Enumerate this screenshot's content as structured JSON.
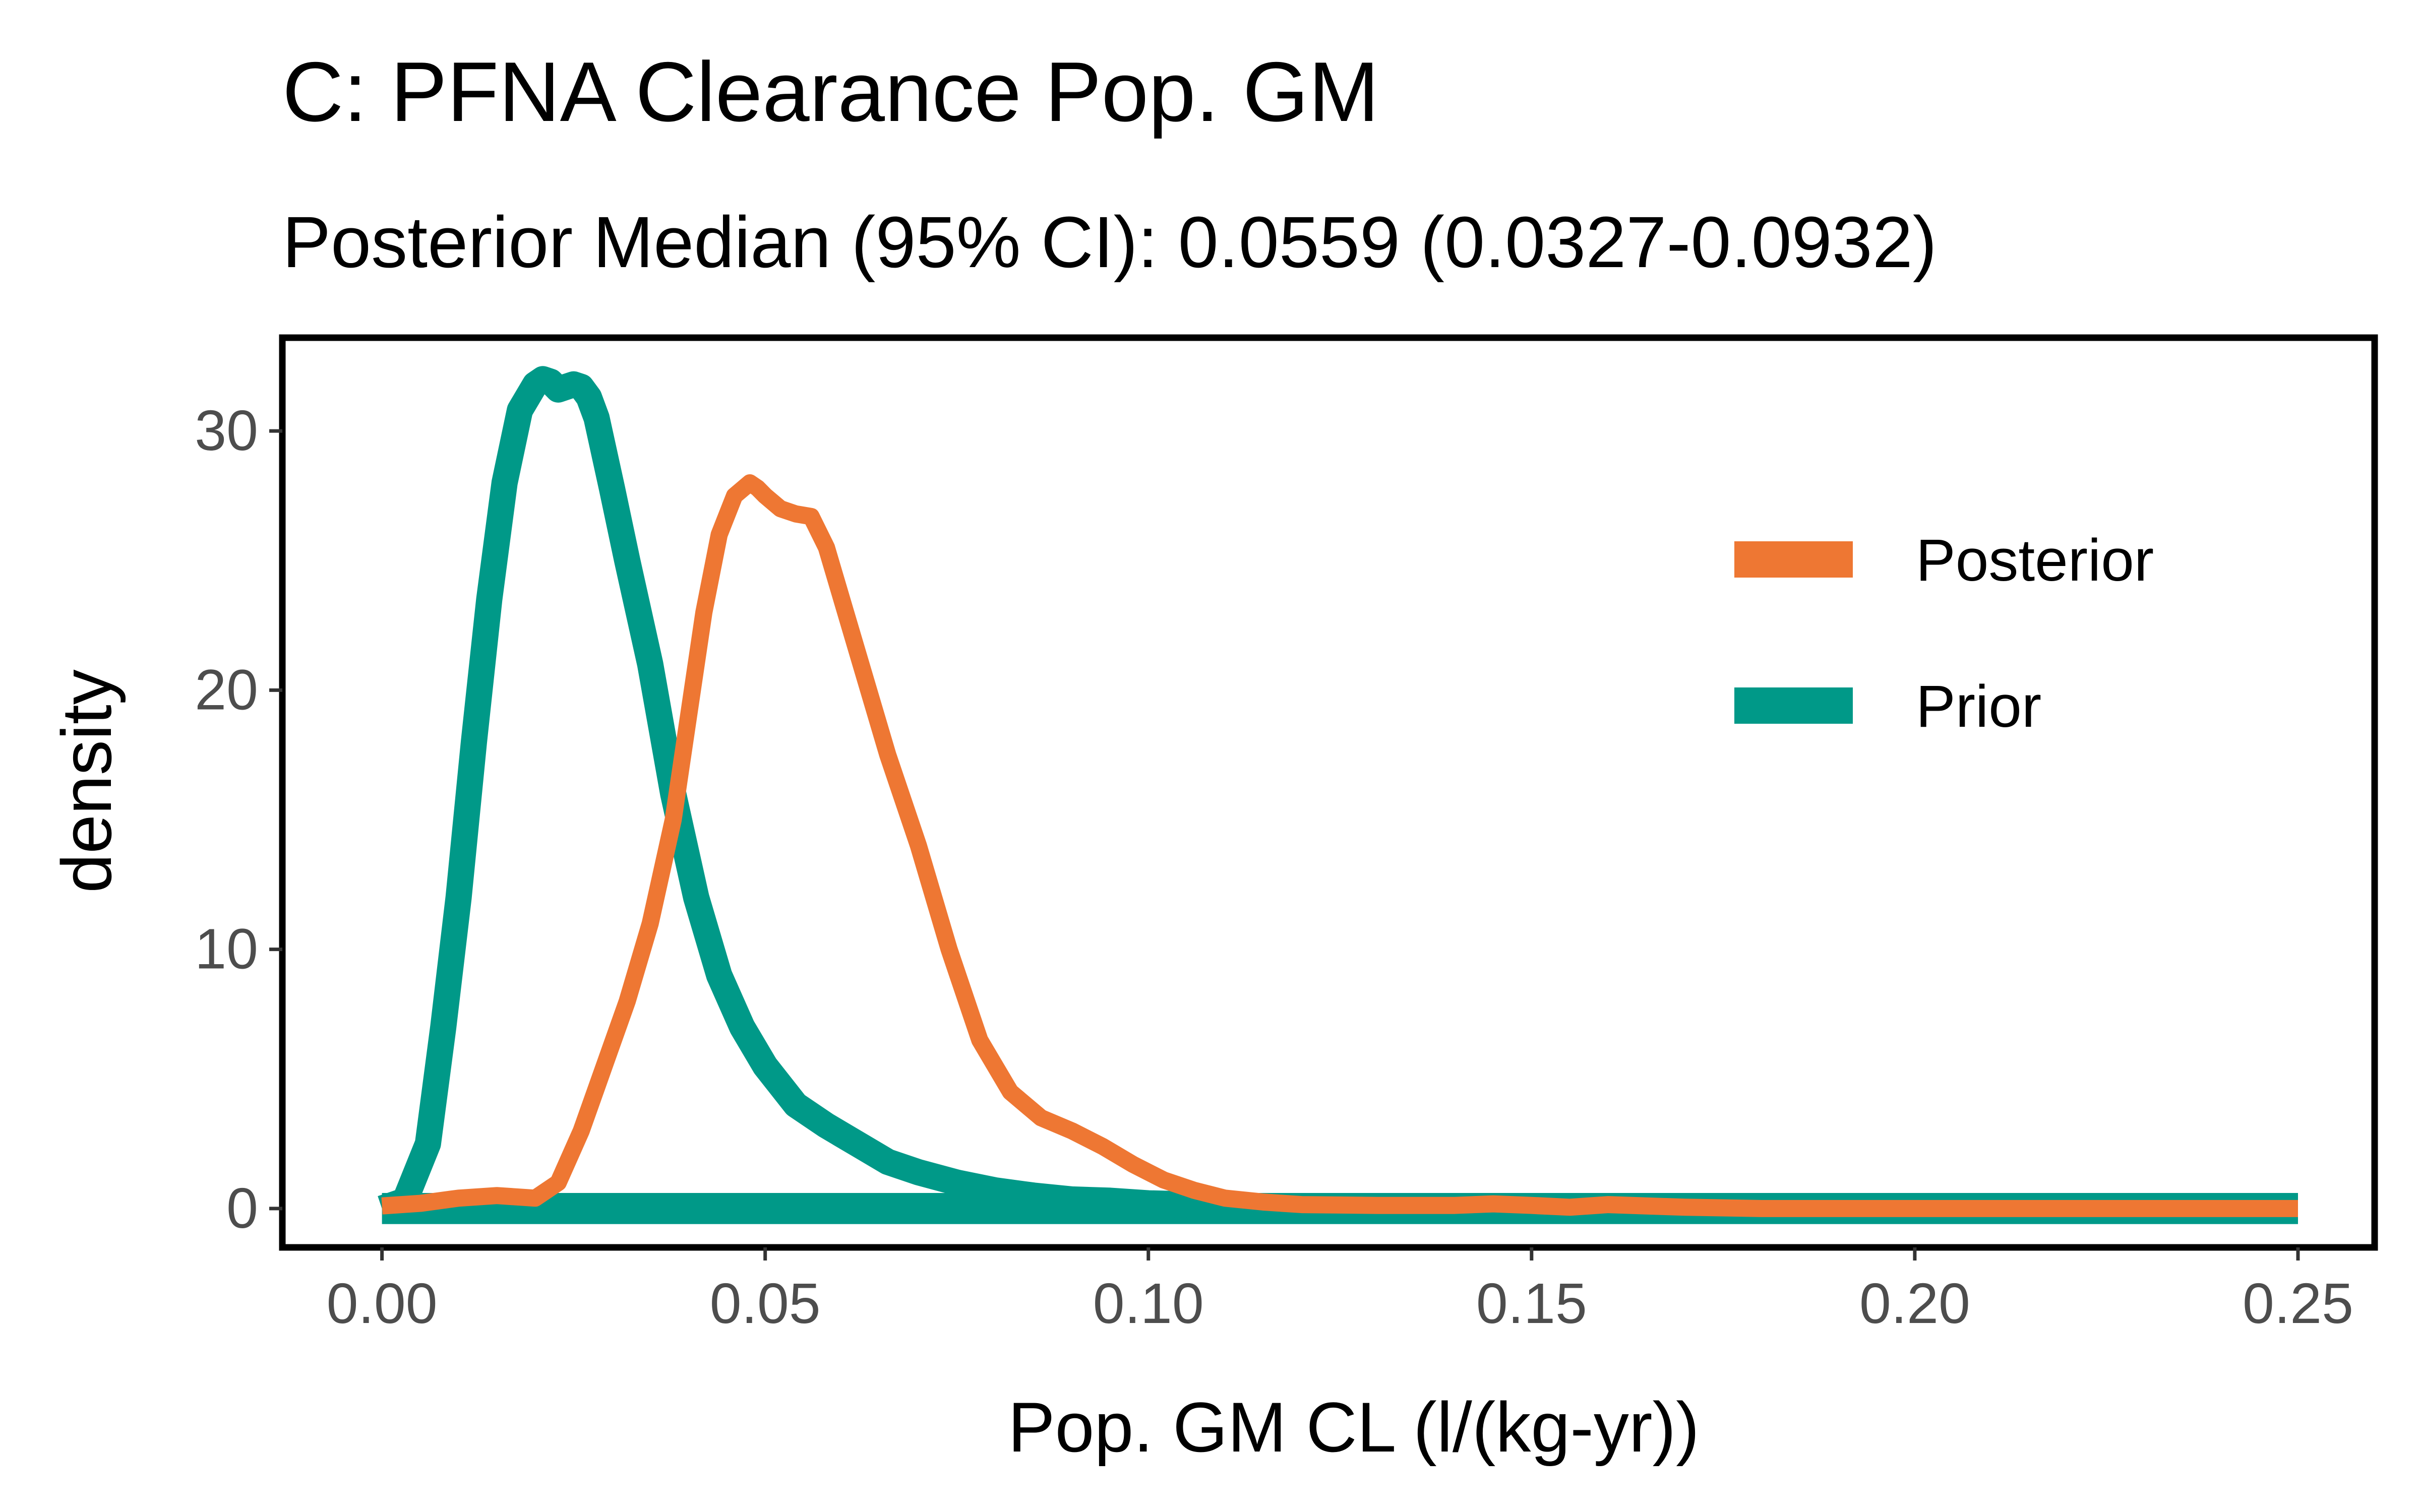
{
  "chart_data": {
    "type": "line",
    "title": "C: PFNA Clearance Pop. GM",
    "subtitle": "Posterior Median (95% CI): 0.0559 (0.0327-0.0932)",
    "xlabel": "Pop. GM CL (l/(kg-yr))",
    "ylabel": "density",
    "xlim": [
      -0.013,
      0.26
    ],
    "ylim": [
      -1.5,
      33.6
    ],
    "x_ticks": [
      0.0,
      0.05,
      0.1,
      0.15,
      0.2,
      0.25
    ],
    "x_tick_labels": [
      "0.00",
      "0.05",
      "0.10",
      "0.15",
      "0.20",
      "0.25"
    ],
    "y_ticks": [
      0,
      10,
      20,
      30
    ],
    "y_tick_labels": [
      "0",
      "10",
      "20",
      "30"
    ],
    "grid": false,
    "legend_position": "right-upper-inside",
    "series": [
      {
        "name": "Posterior",
        "color": "#EE7733",
        "x": [
          0.0,
          0.005,
          0.01,
          0.015,
          0.02,
          0.023,
          0.026,
          0.029,
          0.032,
          0.035,
          0.038,
          0.04,
          0.042,
          0.044,
          0.046,
          0.048,
          0.049,
          0.05,
          0.052,
          0.054,
          0.056,
          0.058,
          0.06,
          0.063,
          0.066,
          0.07,
          0.074,
          0.078,
          0.082,
          0.086,
          0.09,
          0.094,
          0.098,
          0.102,
          0.106,
          0.11,
          0.115,
          0.12,
          0.13,
          0.14,
          0.145,
          0.15,
          0.155,
          0.16,
          0.165,
          0.17,
          0.18,
          0.2,
          0.22,
          0.25
        ],
        "y": [
          0.1,
          0.2,
          0.4,
          0.5,
          0.4,
          1.0,
          3.0,
          5.5,
          8.0,
          11.0,
          15.0,
          19.0,
          23.0,
          26.0,
          27.5,
          28.0,
          27.8,
          27.5,
          27.0,
          26.8,
          26.7,
          25.5,
          23.5,
          20.5,
          17.5,
          14.0,
          10.0,
          6.5,
          4.5,
          3.5,
          3.0,
          2.4,
          1.7,
          1.1,
          0.7,
          0.4,
          0.25,
          0.15,
          0.12,
          0.12,
          0.18,
          0.12,
          0.05,
          0.15,
          0.1,
          0.05,
          0.0,
          0.0,
          0.0,
          0.0
        ]
      },
      {
        "name": "Prior",
        "color": "#009988",
        "x": [
          0.0,
          0.003,
          0.006,
          0.008,
          0.01,
          0.012,
          0.014,
          0.016,
          0.018,
          0.02,
          0.021,
          0.022,
          0.023,
          0.024,
          0.025,
          0.026,
          0.027,
          0.028,
          0.03,
          0.032,
          0.035,
          0.038,
          0.041,
          0.044,
          0.047,
          0.05,
          0.054,
          0.058,
          0.062,
          0.066,
          0.07,
          0.075,
          0.08,
          0.085,
          0.09,
          0.095,
          0.1,
          0.11,
          0.12,
          0.13,
          0.15,
          0.17,
          0.2,
          0.25
        ],
        "y": [
          0.0,
          0.3,
          2.5,
          7.0,
          12.0,
          18.0,
          23.5,
          28.0,
          30.8,
          31.8,
          32.0,
          31.9,
          31.6,
          31.7,
          31.8,
          31.7,
          31.3,
          30.5,
          27.8,
          25.0,
          21.0,
          16.0,
          12.0,
          9.0,
          7.0,
          5.5,
          4.0,
          3.2,
          2.5,
          1.8,
          1.4,
          1.0,
          0.7,
          0.5,
          0.35,
          0.3,
          0.2,
          0.12,
          0.05,
          0.0,
          0.0,
          0.0,
          0.0,
          0.0
        ]
      }
    ],
    "prior_ribbon_band": [
      -0.6,
      0.6
    ]
  }
}
